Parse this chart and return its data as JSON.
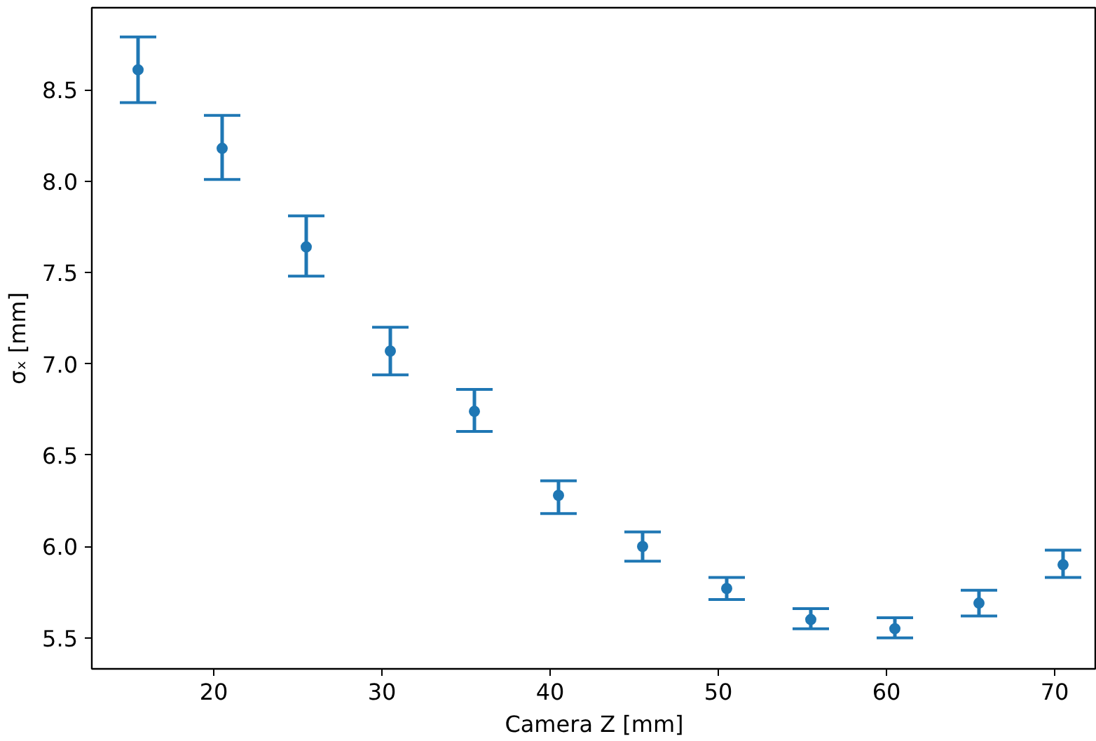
{
  "chart_data": {
    "type": "scatter",
    "xlabel": "Camera Z [mm]",
    "ylabel": "σₓ [mm]",
    "x": [
      15.5,
      20.5,
      25.5,
      30.5,
      35.5,
      40.5,
      45.5,
      50.5,
      55.5,
      60.5,
      65.5,
      70.5
    ],
    "series": [
      {
        "color": "#1f77b4",
        "values": [
          8.61,
          8.18,
          7.64,
          7.07,
          6.74,
          6.28,
          6.0,
          5.77,
          5.6,
          5.55,
          5.69,
          5.9
        ],
        "errors": [
          [
            8.43,
            8.79
          ],
          [
            8.01,
            8.36
          ],
          [
            7.48,
            7.81
          ],
          [
            6.94,
            7.2
          ],
          [
            6.63,
            6.86
          ],
          [
            6.18,
            6.36
          ],
          [
            5.92,
            6.08
          ],
          [
            5.71,
            5.83
          ],
          [
            5.55,
            5.66
          ],
          [
            5.5,
            5.61
          ],
          [
            5.62,
            5.76
          ],
          [
            5.83,
            5.98
          ]
        ]
      }
    ],
    "xlim": [
      12.75,
      72.5
    ],
    "ylim": [
      5.33,
      8.95
    ],
    "xticks": [
      20,
      30,
      40,
      50,
      60,
      70
    ],
    "yticks": [
      {
        "value": 5.5,
        "label": "5.5"
      },
      {
        "value": 6,
        "label": "6.0"
      },
      {
        "value": 6.5,
        "label": "6.5"
      },
      {
        "value": 7,
        "label": "7.0"
      },
      {
        "value": 7.5,
        "label": "7.5"
      },
      {
        "value": 8,
        "label": "8.0"
      },
      {
        "value": 8.5,
        "label": "8.5"
      }
    ],
    "grid": false,
    "marker": "circle"
  }
}
